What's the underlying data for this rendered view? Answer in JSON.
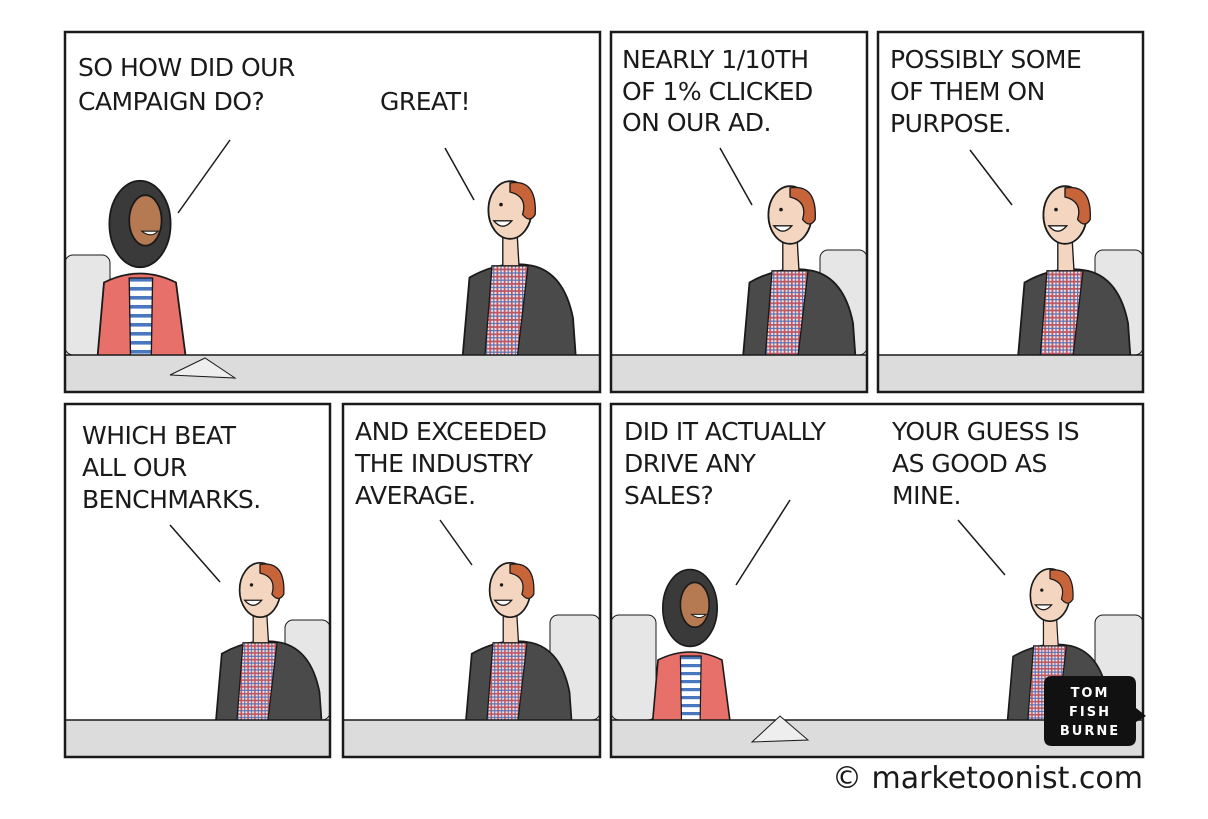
{
  "panels": [
    {
      "speech": [
        {
          "lines": [
            "SO HOW DID OUR",
            "CAMPAIGN DO?"
          ]
        },
        {
          "lines": [
            "GREAT!"
          ]
        }
      ]
    },
    {
      "speech": [
        {
          "lines": [
            "NEARLY 1/10TH",
            "OF 1% CLICKED",
            "ON OUR AD."
          ]
        }
      ]
    },
    {
      "speech": [
        {
          "lines": [
            "POSSIBLY SOME",
            "OF THEM ON",
            "PURPOSE."
          ]
        }
      ]
    },
    {
      "speech": [
        {
          "lines": [
            "WHICH BEAT",
            "ALL OUR",
            "BENCHMARKS."
          ]
        }
      ]
    },
    {
      "speech": [
        {
          "lines": [
            "AND EXCEEDED",
            "THE INDUSTRY",
            "AVERAGE."
          ]
        }
      ]
    },
    {
      "speech": [
        {
          "lines": [
            "DID IT ACTUALLY",
            "DRIVE ANY",
            "SALES?"
          ]
        },
        {
          "lines": [
            "YOUR GUESS IS",
            "AS GOOD AS",
            "MINE."
          ]
        }
      ]
    }
  ],
  "signature": {
    "lines": [
      "TOM",
      "FISH",
      "BURNE"
    ]
  },
  "footer": "© marketoonist.com"
}
